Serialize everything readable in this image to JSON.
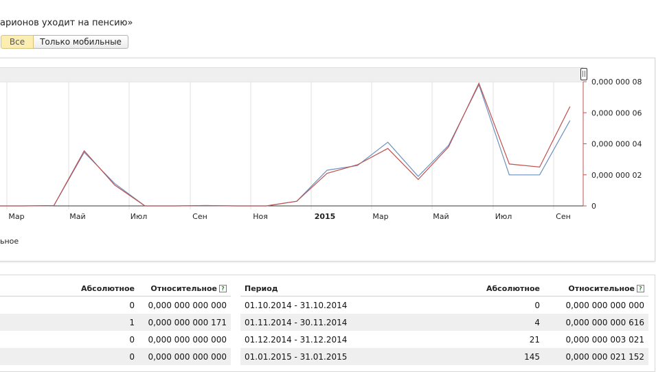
{
  "page": {
    "title": "арионов уходит на пенсию»"
  },
  "filter": {
    "all_label": "Все",
    "mobile_label": "Только мобильные",
    "selected": "Все"
  },
  "legend_fragment": "ьное",
  "chart_data": {
    "type": "line",
    "x_labels": [
      "Мар",
      "Май",
      "Июл",
      "Сен",
      "Ноя",
      "2015",
      "Мар",
      "Май",
      "Июл",
      "Сен"
    ],
    "y_tick_labels": [
      "0,000 000 08",
      "0,000 000 06",
      "0,000 000 04",
      "0,000 000 02",
      "0"
    ],
    "ylim": [
      0,
      8e-08
    ],
    "grid": "vertical",
    "colors": {
      "series_a": "#6a8fbf",
      "series_b": "#c0504d",
      "grid": "#e2e2e2",
      "axis": "#c0504d"
    },
    "series": [
      {
        "values": [
          0,
          0,
          2e-10,
          3.45e-08,
          1.45e-08,
          0,
          0,
          2e-10,
          0,
          0,
          3e-09,
          2.3e-08,
          2.6e-08,
          4.1e-08,
          1.9e-08,
          3.9e-08,
          7.8e-08,
          2e-08,
          2e-08,
          5.5e-08
        ]
      },
      {
        "values": [
          0,
          0,
          2e-10,
          3.55e-08,
          1.35e-08,
          0,
          0,
          2e-10,
          0,
          0,
          3e-09,
          2.1e-08,
          2.65e-08,
          3.7e-08,
          1.7e-08,
          3.8e-08,
          7.9e-08,
          2.7e-08,
          2.5e-08,
          6.4e-08
        ]
      }
    ]
  },
  "left_table": {
    "headers": {
      "abs": "Абсолютное",
      "rel": "Относительное"
    },
    "rows": [
      {
        "abs": "0",
        "rel": "0,000 000 000 000"
      },
      {
        "abs": "1",
        "rel": "0,000 000 000 171"
      },
      {
        "abs": "0",
        "rel": "0,000 000 000 000"
      },
      {
        "abs": "0",
        "rel": "0,000 000 000 000"
      }
    ]
  },
  "right_table": {
    "headers": {
      "period": "Период",
      "abs": "Абсолютное",
      "rel": "Относительное"
    },
    "rows": [
      {
        "period": "01.10.2014 - 31.10.2014",
        "abs": "0",
        "rel": "0,000 000 000 000"
      },
      {
        "period": "01.11.2014 - 30.11.2014",
        "abs": "4",
        "rel": "0,000 000 000 616"
      },
      {
        "period": "01.12.2014 - 31.12.2014",
        "abs": "21",
        "rel": "0,000 000 003 021"
      },
      {
        "period": "01.01.2015 - 31.01.2015",
        "abs": "145",
        "rel": "0,000 000 021 152"
      }
    ]
  }
}
